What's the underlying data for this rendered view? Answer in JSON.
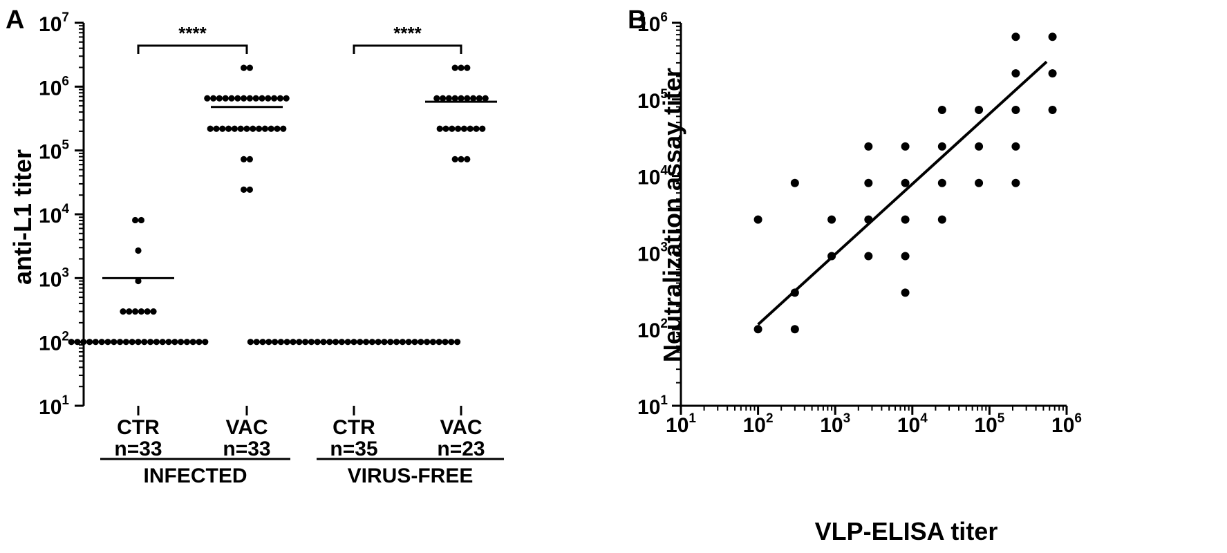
{
  "panels": {
    "a": {
      "letter": "A"
    },
    "b": {
      "letter": "B"
    }
  },
  "chart_data": [
    {
      "type": "scatter",
      "panel": "A",
      "ylabel": "anti-L1 titer",
      "yscale": "log",
      "ylim": [
        10,
        10000000
      ],
      "yticks": [
        {
          "base": "10",
          "exp": "1"
        },
        {
          "base": "10",
          "exp": "2"
        },
        {
          "base": "10",
          "exp": "3"
        },
        {
          "base": "10",
          "exp": "4"
        },
        {
          "base": "10",
          "exp": "5"
        },
        {
          "base": "10",
          "exp": "6"
        },
        {
          "base": "10",
          "exp": "7"
        }
      ],
      "categories": [
        {
          "label": "CTR",
          "n": "n=33"
        },
        {
          "label": "VAC",
          "n": "n=33"
        },
        {
          "label": "CTR",
          "n": "n=35"
        },
        {
          "label": "VAC",
          "n": "n=23"
        }
      ],
      "groups": [
        "INFECTED",
        "VIRUS-FREE"
      ],
      "significance": [
        {
          "from": 0,
          "to": 1,
          "label": "****"
        },
        {
          "from": 2,
          "to": 3,
          "label": "****"
        }
      ],
      "series": [
        {
          "mean": 1000,
          "rows": [
            {
              "value": 8100,
              "count": 2
            },
            {
              "value": 2700,
              "count": 1
            },
            {
              "value": 900,
              "count": 1
            },
            {
              "value": 300,
              "count": 6
            },
            {
              "value": 100,
              "count": 23
            }
          ]
        },
        {
          "mean": 480000,
          "rows": [
            {
              "value": 1970000,
              "count": 2
            },
            {
              "value": 656000,
              "count": 14
            },
            {
              "value": 219000,
              "count": 13
            },
            {
              "value": 72900,
              "count": 2
            },
            {
              "value": 24300,
              "count": 2
            }
          ]
        },
        {
          "mean": 100,
          "rows": [
            {
              "value": 100,
              "count": 35
            }
          ]
        },
        {
          "mean": 580000,
          "rows": [
            {
              "value": 1970000,
              "count": 3
            },
            {
              "value": 656000,
              "count": 9
            },
            {
              "value": 219000,
              "count": 8
            },
            {
              "value": 72900,
              "count": 3
            }
          ]
        }
      ]
    },
    {
      "type": "scatter",
      "panel": "B",
      "xlabel": "VLP-ELISA titer",
      "ylabel": "Neutralization assay titer",
      "xscale": "log",
      "yscale": "log",
      "xlim": [
        10,
        1000000
      ],
      "ylim": [
        10,
        1000000
      ],
      "xticks": [
        {
          "base": "10",
          "exp": "1"
        },
        {
          "base": "10",
          "exp": "2"
        },
        {
          "base": "10",
          "exp": "3"
        },
        {
          "base": "10",
          "exp": "4"
        },
        {
          "base": "10",
          "exp": "5"
        },
        {
          "base": "10",
          "exp": "6"
        }
      ],
      "yticks": [
        {
          "base": "10",
          "exp": "1"
        },
        {
          "base": "10",
          "exp": "2"
        },
        {
          "base": "10",
          "exp": "3"
        },
        {
          "base": "10",
          "exp": "4"
        },
        {
          "base": "10",
          "exp": "5"
        },
        {
          "base": "10",
          "exp": "6"
        }
      ],
      "points": [
        {
          "x": 100,
          "y": 2700
        },
        {
          "x": 100,
          "y": 100
        },
        {
          "x": 300,
          "y": 8100
        },
        {
          "x": 300,
          "y": 300
        },
        {
          "x": 300,
          "y": 100
        },
        {
          "x": 900,
          "y": 2700
        },
        {
          "x": 900,
          "y": 900
        },
        {
          "x": 2700,
          "y": 24300
        },
        {
          "x": 2700,
          "y": 8100
        },
        {
          "x": 2700,
          "y": 2700
        },
        {
          "x": 2700,
          "y": 900
        },
        {
          "x": 8100,
          "y": 24300
        },
        {
          "x": 8100,
          "y": 8100
        },
        {
          "x": 8100,
          "y": 2700
        },
        {
          "x": 8100,
          "y": 900
        },
        {
          "x": 8100,
          "y": 300
        },
        {
          "x": 24300,
          "y": 72900
        },
        {
          "x": 24300,
          "y": 24300
        },
        {
          "x": 24300,
          "y": 8100
        },
        {
          "x": 24300,
          "y": 2700
        },
        {
          "x": 72900,
          "y": 72900
        },
        {
          "x": 72900,
          "y": 24300
        },
        {
          "x": 72900,
          "y": 8100
        },
        {
          "x": 219000,
          "y": 656000
        },
        {
          "x": 219000,
          "y": 219000
        },
        {
          "x": 219000,
          "y": 72900
        },
        {
          "x": 219000,
          "y": 24300
        },
        {
          "x": 219000,
          "y": 8100
        },
        {
          "x": 656000,
          "y": 656000
        },
        {
          "x": 656000,
          "y": 219000
        },
        {
          "x": 656000,
          "y": 72900
        }
      ],
      "fit_line": {
        "x": [
          100,
          550000
        ],
        "y": [
          115,
          310000
        ]
      }
    }
  ]
}
